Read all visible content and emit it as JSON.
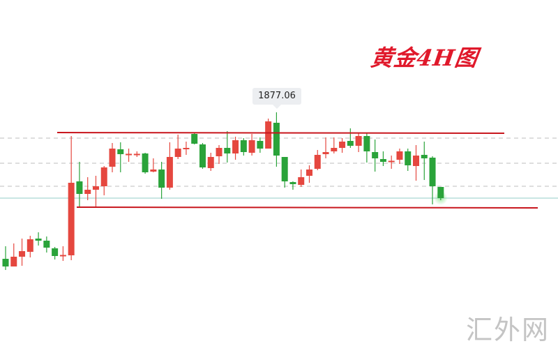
{
  "chart_data": {
    "type": "candlestick",
    "title": "黄金4H图",
    "colors": {
      "up": "#e5473f",
      "down": "#2aa33a",
      "resistance": "#c8161d",
      "support": "#c8161d",
      "grid": "#bdbdbd",
      "price_line": "#a9d6d2"
    },
    "high_label": "1877.06",
    "candles": [
      [
        1824.56,
        1829.06,
        1820.56,
        1821.81
      ],
      [
        1821.81,
        1830.06,
        1821.81,
        1825.31
      ],
      [
        1825.31,
        1831.81,
        1822.06,
        1827.31
      ],
      [
        1827.06,
        1832.81,
        1825.06,
        1831.56
      ],
      [
        1831.81,
        1834.06,
        1829.31,
        1831.06
      ],
      [
        1831.06,
        1832.56,
        1826.81,
        1828.56
      ],
      [
        1828.31,
        1828.81,
        1824.31,
        1825.56
      ],
      [
        1825.81,
        1829.06,
        1823.81,
        1825.94
      ],
      [
        1825.81,
        1868.56,
        1824.06,
        1851.81
      ],
      [
        1852.31,
        1859.31,
        1843.06,
        1847.81
      ],
      [
        1847.81,
        1853.81,
        1845.56,
        1849.31
      ],
      [
        1849.31,
        1854.31,
        1843.06,
        1850.56
      ],
      [
        1850.56,
        1857.81,
        1847.31,
        1857.31
      ],
      [
        1857.56,
        1866.06,
        1855.56,
        1864.06
      ],
      [
        1863.81,
        1866.31,
        1855.56,
        1862.06
      ],
      [
        1862.06,
        1864.06,
        1859.31,
        1862.19
      ],
      [
        1862.06,
        1863.06,
        1861.06,
        1862.19
      ],
      [
        1862.31,
        1862.56,
        1855.06,
        1855.56
      ],
      [
        1855.81,
        1860.56,
        1855.56,
        1856.56
      ],
      [
        1856.56,
        1859.31,
        1846.06,
        1850.06
      ],
      [
        1850.06,
        1866.31,
        1849.31,
        1861.06
      ],
      [
        1861.06,
        1869.06,
        1860.31,
        1864.06
      ],
      [
        1863.81,
        1866.56,
        1861.81,
        1864.31
      ],
      [
        1869.31,
        1869.81,
        1865.56,
        1865.81
      ],
      [
        1865.56,
        1866.06,
        1856.81,
        1857.31
      ],
      [
        1857.06,
        1862.56,
        1856.06,
        1861.06
      ],
      [
        1861.31,
        1865.31,
        1858.56,
        1864.31
      ],
      [
        1864.31,
        1870.31,
        1859.06,
        1862.31
      ],
      [
        1862.31,
        1868.31,
        1860.06,
        1867.06
      ],
      [
        1867.06,
        1867.81,
        1861.56,
        1862.81
      ],
      [
        1862.56,
        1869.31,
        1861.56,
        1867.06
      ],
      [
        1866.81,
        1868.06,
        1862.56,
        1864.06
      ],
      [
        1864.06,
        1874.81,
        1864.06,
        1873.81
      ],
      [
        1873.31,
        1877.06,
        1857.56,
        1861.56
      ],
      [
        1861.06,
        1861.06,
        1850.06,
        1852.31
      ],
      [
        1852.06,
        1852.31,
        1849.31,
        1851.31
      ],
      [
        1851.06,
        1856.56,
        1850.31,
        1853.81
      ],
      [
        1854.31,
        1858.06,
        1851.81,
        1856.56
      ],
      [
        1856.81,
        1863.56,
        1856.31,
        1861.81
      ],
      [
        1862.06,
        1868.06,
        1860.56,
        1862.81
      ],
      [
        1863.06,
        1868.06,
        1862.31,
        1864.31
      ],
      [
        1864.31,
        1867.81,
        1862.56,
        1866.56
      ],
      [
        1866.81,
        1871.31,
        1864.31,
        1865.06
      ],
      [
        1865.06,
        1869.56,
        1862.81,
        1868.56
      ],
      [
        1868.56,
        1869.81,
        1859.06,
        1863.06
      ],
      [
        1862.81,
        1867.31,
        1855.81,
        1860.56
      ],
      [
        1860.31,
        1863.06,
        1857.81,
        1859.31
      ],
      [
        1859.56,
        1861.56,
        1856.81,
        1859.69
      ],
      [
        1860.06,
        1864.06,
        1858.56,
        1863.06
      ],
      [
        1863.06,
        1864.06,
        1856.06,
        1858.06
      ],
      [
        1857.81,
        1865.31,
        1852.56,
        1861.56
      ],
      [
        1861.81,
        1866.56,
        1852.81,
        1860.56
      ],
      [
        1860.81,
        1861.31,
        1844.06,
        1850.56
      ],
      [
        1850.31,
        1850.31,
        1845.56,
        1846.31
      ]
    ],
    "candle_fields": [
      "open",
      "high",
      "low",
      "close"
    ],
    "resistance_line": [
      1869.81,
      1869.56
    ],
    "support_line": [
      1843.06,
      1842.81
    ],
    "grid_levels": [
      1867.81,
      1858.81,
      1850.56
    ],
    "current_price_level": 1846.31,
    "grid": true
  },
  "watermark": "汇外网"
}
